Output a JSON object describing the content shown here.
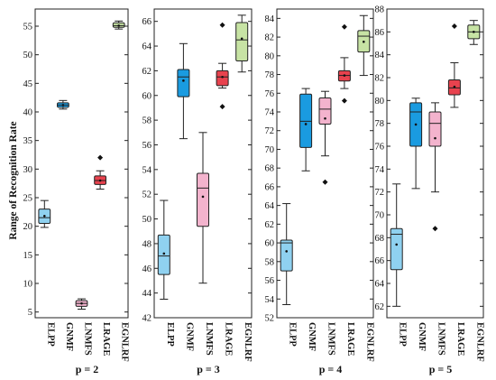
{
  "ylabel": "Range of Recognition Rate",
  "chart_data": [
    {
      "type": "box",
      "title": "p = 2",
      "ylabel": "Range of Recognition Rate",
      "ylim": [
        4,
        58
      ],
      "yticks": [
        5,
        10,
        15,
        20,
        25,
        30,
        35,
        40,
        45,
        50,
        55
      ],
      "categories": [
        "ELPP",
        "GNMF",
        "LNMFS",
        "LRAGE",
        "EGNLRF"
      ],
      "boxes": [
        {
          "min": 19.8,
          "q1": 20.5,
          "median": 21.5,
          "q3": 23.0,
          "max": 24.5,
          "mean": 21.8,
          "outliers": []
        },
        {
          "min": 40.5,
          "q1": 40.8,
          "median": 41.2,
          "q3": 41.6,
          "max": 42.0,
          "mean": 41.2,
          "outliers": []
        },
        {
          "min": 5.5,
          "q1": 6.0,
          "median": 6.5,
          "q3": 7.0,
          "max": 7.3,
          "mean": 6.5,
          "outliers": []
        },
        {
          "min": 26.5,
          "q1": 27.3,
          "median": 28.0,
          "q3": 28.8,
          "max": 29.7,
          "mean": 28.0,
          "outliers": [
            32.0
          ]
        },
        {
          "min": 54.5,
          "q1": 54.8,
          "median": 55.1,
          "q3": 55.6,
          "max": 55.9,
          "mean": 55.1,
          "outliers": []
        }
      ]
    },
    {
      "type": "box",
      "title": "p = 3",
      "ylim": [
        42,
        67
      ],
      "yticks": [
        42,
        44,
        46,
        48,
        50,
        52,
        54,
        56,
        58,
        60,
        62,
        64,
        66
      ],
      "categories": [
        "ELPP",
        "GNMF",
        "LNMFS",
        "LRAGE",
        "EGNLRF"
      ],
      "boxes": [
        {
          "min": 43.5,
          "q1": 45.5,
          "median": 47.0,
          "q3": 48.7,
          "max": 51.5,
          "mean": 47.2,
          "outliers": []
        },
        {
          "min": 56.5,
          "q1": 59.9,
          "median": 61.5,
          "q3": 62.1,
          "max": 64.2,
          "mean": 61.2,
          "outliers": []
        },
        {
          "min": 44.8,
          "q1": 49.4,
          "median": 52.5,
          "q3": 53.7,
          "max": 57.0,
          "mean": 51.8,
          "outliers": []
        },
        {
          "min": 60.6,
          "q1": 60.8,
          "median": 61.5,
          "q3": 62.0,
          "max": 62.6,
          "mean": 61.5,
          "outliers": [
            65.7,
            59.1
          ]
        },
        {
          "min": 61.9,
          "q1": 62.8,
          "median": 64.5,
          "q3": 65.9,
          "max": 66.5,
          "mean": 64.6,
          "outliers": []
        }
      ]
    },
    {
      "type": "box",
      "title": "p = 4",
      "ylim": [
        52,
        85
      ],
      "yticks": [
        52,
        54,
        56,
        58,
        60,
        62,
        64,
        66,
        68,
        70,
        72,
        74,
        76,
        78,
        80,
        82,
        84
      ],
      "categories": [
        "ELPP",
        "GNMF",
        "LNMFS",
        "LRAGE",
        "EGNLRF"
      ],
      "boxes": [
        {
          "min": 53.4,
          "q1": 57.0,
          "median": 60.0,
          "q3": 60.3,
          "max": 64.2,
          "mean": 59.1,
          "outliers": []
        },
        {
          "min": 67.7,
          "q1": 70.2,
          "median": 73.0,
          "q3": 75.9,
          "max": 76.5,
          "mean": 72.7,
          "outliers": []
        },
        {
          "min": 69.3,
          "q1": 72.7,
          "median": 74.3,
          "q3": 75.5,
          "max": 76.2,
          "mean": 73.3,
          "outliers": [
            66.5
          ]
        },
        {
          "min": 76.5,
          "q1": 77.3,
          "median": 77.9,
          "q3": 78.4,
          "max": 79.8,
          "mean": 77.9,
          "outliers": [
            83.1,
            75.2
          ]
        },
        {
          "min": 77.9,
          "q1": 80.4,
          "median": 82.1,
          "q3": 82.7,
          "max": 84.3,
          "mean": 81.5,
          "outliers": []
        }
      ]
    },
    {
      "type": "box",
      "title": "p = 5",
      "ylim": [
        61,
        88
      ],
      "yticks": [
        62,
        64,
        66,
        68,
        70,
        72,
        74,
        76,
        78,
        80,
        82,
        84,
        86,
        88
      ],
      "categories": [
        "ELPP",
        "GNMF",
        "LNMFS",
        "LRAGE",
        "EGNLRF"
      ],
      "boxes": [
        {
          "min": 62.0,
          "q1": 65.2,
          "median": 68.3,
          "q3": 68.8,
          "max": 72.7,
          "mean": 67.4,
          "outliers": []
        },
        {
          "min": 72.3,
          "q1": 76.0,
          "median": 79.0,
          "q3": 79.8,
          "max": 80.2,
          "mean": 77.9,
          "outliers": []
        },
        {
          "min": 72.0,
          "q1": 76.0,
          "median": 78.0,
          "q3": 79.0,
          "max": 79.8,
          "mean": 76.7,
          "outliers": [
            68.8
          ]
        },
        {
          "min": 79.4,
          "q1": 80.5,
          "median": 81.1,
          "q3": 81.8,
          "max": 83.3,
          "mean": 81.2,
          "outliers": [
            86.5
          ]
        },
        {
          "min": 84.9,
          "q1": 85.4,
          "median": 86.0,
          "q3": 86.6,
          "max": 87.0,
          "mean": 86.0,
          "outliers": []
        }
      ]
    }
  ],
  "colors": {
    "ELPP": "#8fd1f0",
    "GNMF": "#1a9be0",
    "LNMFS": "#f3b3cd",
    "LRAGE": "#e8424e",
    "EGNLRF": "#c7e3a4"
  }
}
